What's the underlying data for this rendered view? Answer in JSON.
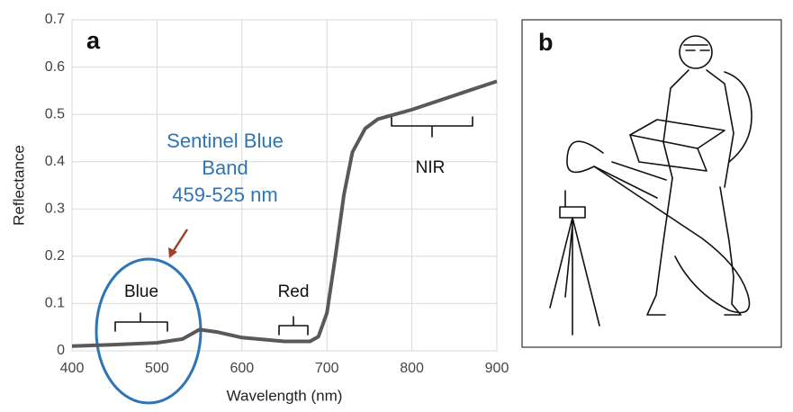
{
  "chart_data": {
    "type": "line",
    "x_label": "Wavelength (nm)",
    "y_label": "Reflectance",
    "x": [
      400,
      450,
      500,
      530,
      550,
      570,
      600,
      650,
      680,
      690,
      700,
      710,
      720,
      730,
      745,
      760,
      800,
      850,
      900
    ],
    "series": [
      {
        "name": "Reflectance",
        "color": "#595959",
        "values": [
          0.01,
          0.013,
          0.017,
          0.025,
          0.045,
          0.04,
          0.028,
          0.02,
          0.02,
          0.03,
          0.08,
          0.2,
          0.33,
          0.42,
          0.47,
          0.49,
          0.51,
          0.54,
          0.57
        ]
      }
    ],
    "xlim": [
      400,
      900
    ],
    "xticks": [
      400,
      500,
      600,
      700,
      800,
      900
    ],
    "ylim": [
      0,
      0.7
    ],
    "yticks": [
      0,
      0.1,
      0.2,
      0.3,
      0.4,
      0.5,
      0.6,
      0.7
    ],
    "grid": true
  },
  "annotations": {
    "panel_a": "a",
    "panel_b": "b",
    "sentinel": [
      "Sentinel Blue",
      "Band",
      "459-525 nm"
    ],
    "blue": "Blue",
    "red": "Red",
    "nir": "NIR"
  }
}
